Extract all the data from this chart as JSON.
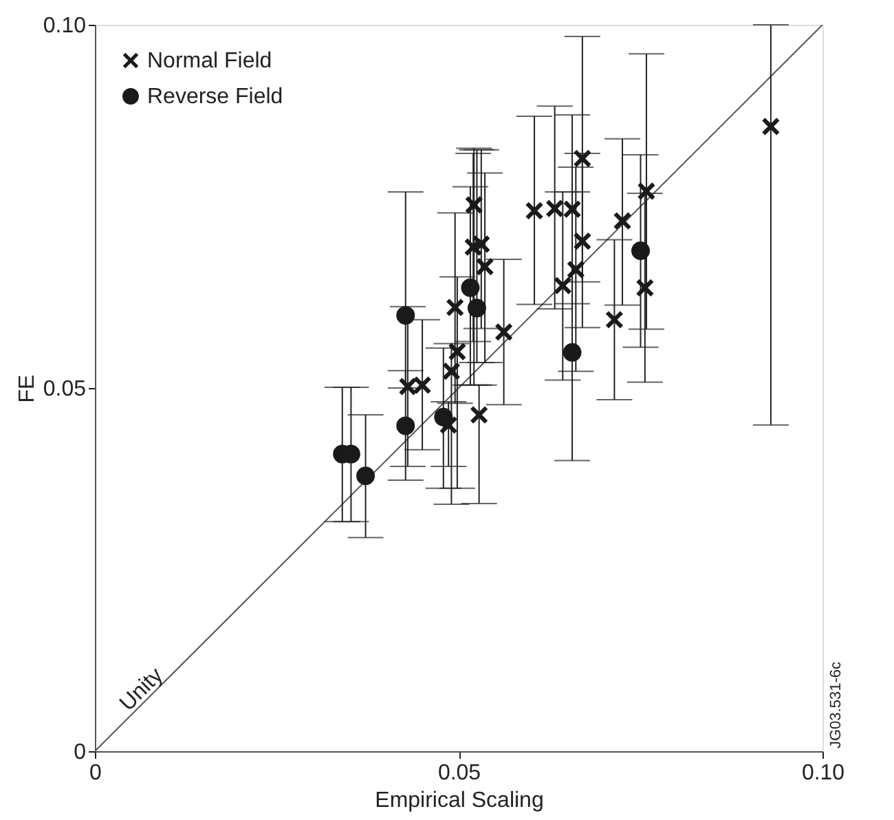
{
  "chart_data": {
    "type": "scatter",
    "xlabel": "Empirical Scaling",
    "ylabel": "FE",
    "xlim": [
      0,
      0.1
    ],
    "ylim": [
      0,
      0.1
    ],
    "xticks": [
      0,
      0.05,
      {
        "value": 0.1,
        "label": "0.10"
      }
    ],
    "yticks": [
      0,
      0.05,
      {
        "value": 0.1,
        "label": "0.10"
      }
    ],
    "legend": "top left",
    "grid": false,
    "series": [
      {
        "name": "Normal Field",
        "marker": "cross",
        "color": "#1a1a1a",
        "x": [
          0.043,
          0.045,
          0.049,
          0.0486,
          0.0498,
          0.0495,
          0.0521,
          0.052,
          0.0531,
          0.0536,
          0.0528,
          0.0562,
          0.0604,
          0.0632,
          0.0656,
          0.0643,
          0.0661,
          0.067,
          0.067,
          0.0714,
          0.0725,
          0.0758,
          0.0756,
          0.0929
        ],
        "values": [
          0.0502,
          0.0504,
          0.0523,
          0.0449,
          0.055,
          0.0611,
          0.0752,
          0.0694,
          0.0698,
          0.0667,
          0.0463,
          0.0577,
          0.0744,
          0.0747,
          0.0746,
          0.0641,
          0.0663,
          0.0816,
          0.0702,
          0.0594,
          0.073,
          0.0771,
          0.0638,
          0.086
        ],
        "errors": [
          [
            0.0392,
            0.0612
          ],
          [
            0.0415,
            0.0594
          ],
          [
            0.034,
            0.0561
          ],
          [
            0.0392,
            0.0481
          ],
          [
            0.0362,
            0.0653
          ],
          [
            0.0479,
            0.0741
          ],
          [
            0.0504,
            0.083
          ],
          [
            0.0564,
            0.0823
          ],
          [
            0.0582,
            0.0828
          ],
          [
            0.0535,
            0.0796
          ],
          [
            0.0341,
            0.0504
          ],
          [
            0.0477,
            0.0677
          ],
          [
            0.0615,
            0.0874
          ],
          [
            0.0609,
            0.0888
          ],
          [
            0.0616,
            0.0876
          ],
          [
            0.0511,
            0.077
          ],
          [
            0.0523,
            0.0804
          ],
          [
            0.0583,
            0.0984
          ],
          [
            0.0646,
            0.0823
          ],
          [
            0.0484,
            0.0704
          ],
          [
            0.0614,
            0.0843
          ],
          [
            0.0581,
            0.096
          ],
          [
            0.0508,
            0.0768
          ],
          [
            0.0449,
            0.1
          ]
        ]
      },
      {
        "name": "Reverse Field",
        "marker": "circle",
        "color": "#1a1a1a",
        "x": [
          0.034,
          0.0352,
          0.0372,
          0.0427,
          0.0427,
          0.0479,
          0.0516,
          0.0525,
          0.0656,
          0.075
        ],
        "values": [
          0.0409,
          0.0409,
          0.0379,
          0.06,
          0.0448,
          0.046,
          0.0638,
          0.061,
          0.0549,
          0.0689
        ],
        "errors": [
          [
            0.0316,
            0.0501
          ],
          [
            0.0316,
            0.0501
          ],
          [
            0.0294,
            0.0463
          ],
          [
            0.05,
            0.077
          ],
          [
            0.0373,
            0.0524
          ],
          [
            0.0362,
            0.0555
          ],
          [
            0.0504,
            0.0777
          ],
          [
            0.0535,
            0.0828
          ],
          [
            0.04,
            0.077
          ],
          [
            0.0556,
            0.0821
          ]
        ]
      },
      {
        "type": "line",
        "color": "#555555",
        "line_style": "solid",
        "x": [
          0,
          0.1
        ],
        "values": [
          0,
          0.1
        ]
      }
    ],
    "annotations": [
      {
        "text": "Unity",
        "x": 0.005,
        "y": 0.005
      },
      "JG03.531-6c"
    ]
  }
}
